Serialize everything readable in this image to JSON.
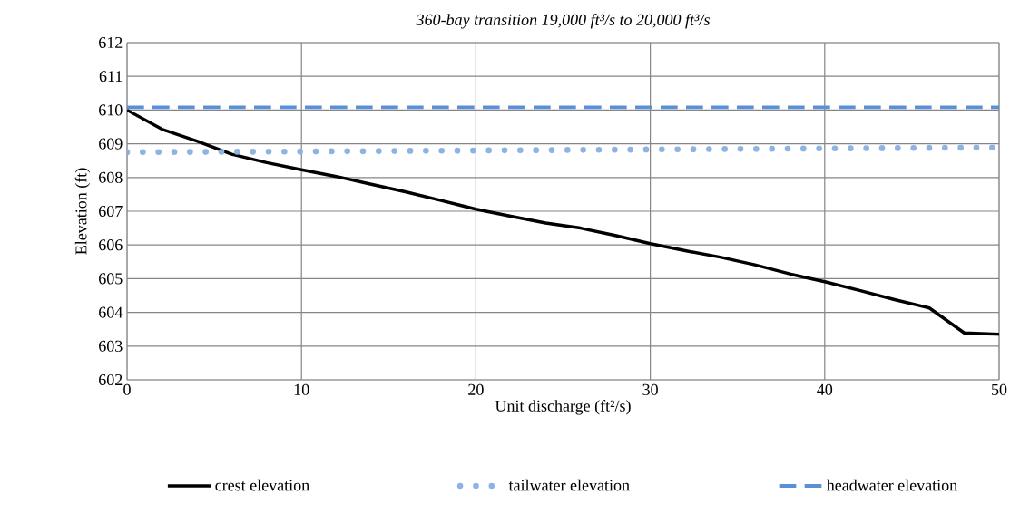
{
  "chart_data": {
    "type": "line",
    "title": "360-bay transition 19,000 ft³/s to 20,000 ft³/s",
    "xlabel": "Unit discharge (ft²/s)",
    "ylabel": "Elevation (ft)",
    "xlim": [
      0,
      50
    ],
    "xticks": [
      0,
      10,
      20,
      30,
      40,
      50
    ],
    "ylim": [
      602,
      612
    ],
    "yticks": [
      602,
      603,
      604,
      605,
      606,
      607,
      608,
      609,
      610,
      611,
      612
    ],
    "grid": true,
    "legend": "bottom",
    "marker": "none",
    "series": [
      {
        "name": "crest elevation",
        "color": "#000000",
        "line_style": "solid",
        "x": [
          0,
          2,
          4,
          6,
          8,
          10,
          12,
          14,
          16,
          18,
          20,
          22,
          24,
          26,
          28,
          30,
          32,
          34,
          36,
          38,
          40,
          42,
          44,
          46,
          48,
          50
        ],
        "values": [
          610.0,
          609.43,
          609.08,
          608.69,
          608.44,
          608.23,
          608.03,
          607.8,
          607.57,
          607.32,
          607.06,
          606.85,
          606.65,
          606.5,
          606.28,
          606.04,
          605.83,
          605.64,
          605.41,
          605.14,
          604.91,
          604.65,
          604.38,
          604.13,
          603.39,
          603.35
        ]
      },
      {
        "name": "tailwater elevation",
        "color": "#8db3e2",
        "line_style": "dotted",
        "x": [
          0,
          10,
          20,
          30,
          40,
          50
        ],
        "values": [
          608.75,
          608.77,
          608.8,
          608.83,
          608.86,
          608.89
        ]
      },
      {
        "name": "headwater elevation",
        "color": "#5b8fd6",
        "line_style": "dashed",
        "x": [
          0,
          50
        ],
        "values": [
          610.08,
          610.08
        ]
      }
    ]
  }
}
